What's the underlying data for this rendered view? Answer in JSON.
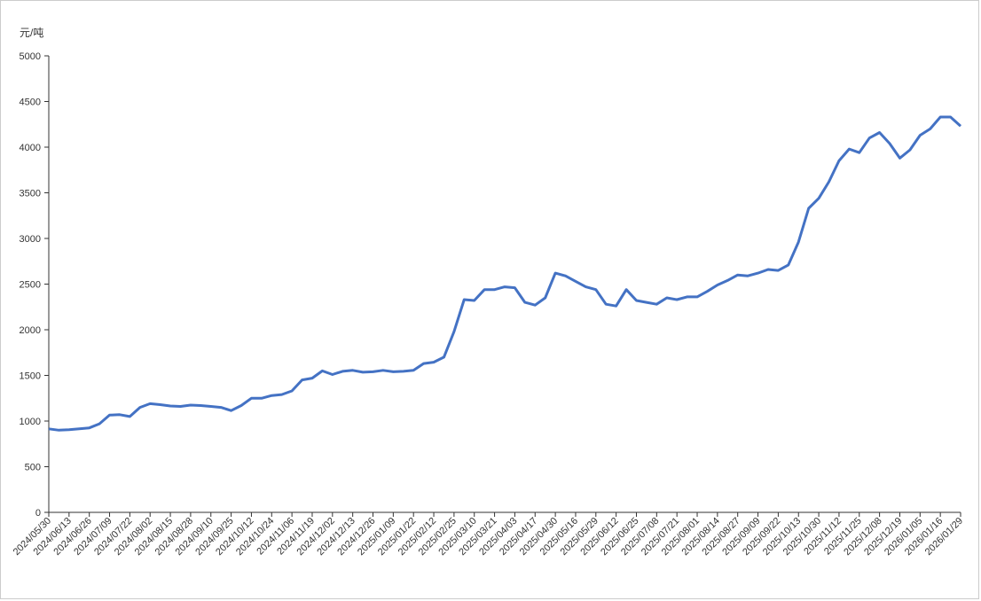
{
  "chart_data": {
    "type": "line",
    "y_label": "元/吨",
    "categories": [
      "2024/05/30",
      null,
      "2024/06/13",
      null,
      "2024/06/26",
      null,
      "2024/07/09",
      null,
      "2024/07/22",
      null,
      "2024/08/02",
      null,
      "2024/08/15",
      null,
      "2024/08/28",
      null,
      "2024/09/10",
      null,
      "2024/09/25",
      null,
      "2024/10/12",
      null,
      "2024/10/24",
      null,
      "2024/11/06",
      null,
      "2024/11/19",
      null,
      "2024/12/02",
      null,
      "2024/12/13",
      null,
      "2024/12/26",
      null,
      "2025/01/09",
      null,
      "2025/01/22",
      null,
      "2025/02/12",
      null,
      "2025/02/25",
      null,
      "2025/03/10",
      null,
      "2025/03/21",
      null,
      "2025/04/03",
      null,
      "2025/04/17",
      null,
      "2025/04/30",
      null,
      "2025/05/16",
      null,
      "2025/05/29",
      null,
      "2025/06/12",
      null,
      "2025/06/25",
      null,
      "2025/07/08",
      null,
      "2025/07/21",
      null,
      "2025/08/01",
      null,
      "2025/08/14",
      null,
      "2025/08/27",
      null,
      "2025/09/09",
      null,
      "2025/09/22",
      null,
      "2025/10/13",
      null,
      "2025/10/30",
      null,
      "2025/11/12",
      null,
      "2025/11/25",
      null,
      "2025/12/08",
      null,
      "2025/12/19",
      null,
      "2026/01/05",
      null,
      "2026/01/16",
      null,
      "2026/01/29"
    ],
    "series": [
      {
        "color": "#4472c4",
        "values": [
          915,
          900,
          905,
          915,
          925,
          970,
          1065,
          1070,
          1050,
          1150,
          1190,
          1180,
          1165,
          1160,
          1175,
          1170,
          1160,
          1150,
          1115,
          1170,
          1250,
          1250,
          1280,
          1290,
          1330,
          1450,
          1470,
          1550,
          1510,
          1545,
          1555,
          1535,
          1540,
          1555,
          1540,
          1545,
          1555,
          1630,
          1645,
          1700,
          1980,
          2330,
          2320,
          2440,
          2440,
          2470,
          2460,
          2300,
          2270,
          2350,
          2620,
          2590,
          2530,
          2470,
          2440,
          2280,
          2260,
          2440,
          2320,
          2300,
          2280,
          2350,
          2330,
          2360,
          2360,
          2420,
          2490,
          2540,
          2600,
          2590,
          2620,
          2660,
          2650,
          2710,
          2960,
          3330,
          3440,
          3620,
          3850,
          3980,
          3940,
          4100,
          4160,
          4040,
          3880,
          3970,
          4130,
          4200,
          4330,
          4330,
          4230
        ]
      }
    ],
    "ylim": [
      0,
      5000
    ],
    "yticks": [
      0,
      500,
      1000,
      1500,
      2000,
      2500,
      3000,
      3500,
      4000,
      4500,
      5000
    ],
    "grid": false
  }
}
